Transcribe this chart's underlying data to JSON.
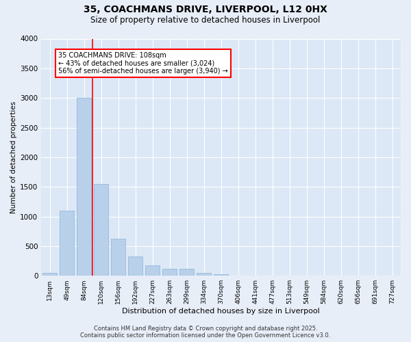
{
  "title_line1": "35, COACHMANS DRIVE, LIVERPOOL, L12 0HX",
  "title_line2": "Size of property relative to detached houses in Liverpool",
  "xlabel": "Distribution of detached houses by size in Liverpool",
  "ylabel": "Number of detached properties",
  "categories": [
    "13sqm",
    "49sqm",
    "84sqm",
    "120sqm",
    "156sqm",
    "192sqm",
    "227sqm",
    "263sqm",
    "299sqm",
    "334sqm",
    "370sqm",
    "406sqm",
    "441sqm",
    "477sqm",
    "513sqm",
    "549sqm",
    "584sqm",
    "620sqm",
    "656sqm",
    "691sqm",
    "727sqm"
  ],
  "values": [
    50,
    1100,
    3000,
    1550,
    620,
    330,
    175,
    120,
    115,
    45,
    30,
    0,
    0,
    0,
    0,
    0,
    0,
    0,
    0,
    0,
    0
  ],
  "bar_color": "#b8d0ea",
  "bar_edgecolor": "#8ab0d8",
  "redline_x": 2.5,
  "annotation_line1": "35 COACHMANS DRIVE: 108sqm",
  "annotation_line2": "← 43% of detached houses are smaller (3,024)",
  "annotation_line3": "56% of semi-detached houses are larger (3,940) →",
  "ylim": [
    0,
    4000
  ],
  "yticks": [
    0,
    500,
    1000,
    1500,
    2000,
    2500,
    3000,
    3500,
    4000
  ],
  "fig_bg_color": "#e8eef8",
  "ax_bg_color": "#dce8f5",
  "grid_color": "#ffffff",
  "footer_line1": "Contains HM Land Registry data © Crown copyright and database right 2025.",
  "footer_line2": "Contains public sector information licensed under the Open Government Licence v3.0."
}
